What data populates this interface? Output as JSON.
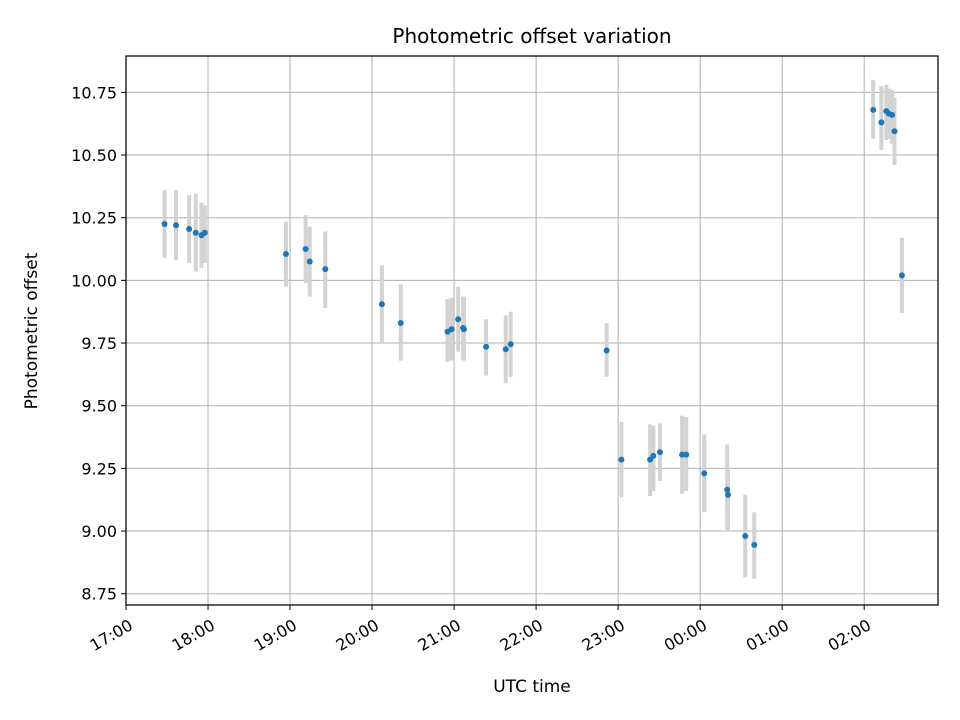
{
  "chart_data": {
    "type": "scatter",
    "title": "Photometric offset variation",
    "xlabel": "UTC time",
    "ylabel": "Photometric offset",
    "x_unit": "hours",
    "xlim": [
      17.0,
      26.9
    ],
    "ylim": [
      8.705,
      10.895
    ],
    "x_ticks": [
      {
        "value": 17,
        "label": "17:00"
      },
      {
        "value": 18,
        "label": "18:00"
      },
      {
        "value": 19,
        "label": "19:00"
      },
      {
        "value": 20,
        "label": "20:00"
      },
      {
        "value": 21,
        "label": "21:00"
      },
      {
        "value": 22,
        "label": "22:00"
      },
      {
        "value": 23,
        "label": "23:00"
      },
      {
        "value": 24,
        "label": "00:00"
      },
      {
        "value": 25,
        "label": "01:00"
      },
      {
        "value": 26,
        "label": "02:00"
      }
    ],
    "y_ticks": [
      8.75,
      9.0,
      9.25,
      9.5,
      9.75,
      10.0,
      10.25,
      10.5,
      10.75
    ],
    "y_tick_labels": [
      "8.75",
      "9.00",
      "9.25",
      "9.50",
      "9.75",
      "10.00",
      "10.25",
      "10.50",
      "10.75"
    ],
    "grid": true,
    "marker_color": "#1f77b4",
    "errorbar_color": "#d3d3d3",
    "points": [
      {
        "t": 17.47,
        "y": 10.225,
        "lo": 10.09,
        "hi": 10.36
      },
      {
        "t": 17.61,
        "y": 10.22,
        "lo": 10.08,
        "hi": 10.36
      },
      {
        "t": 17.77,
        "y": 10.205,
        "lo": 10.07,
        "hi": 10.34
      },
      {
        "t": 17.85,
        "y": 10.19,
        "lo": 10.035,
        "hi": 10.345
      },
      {
        "t": 17.92,
        "y": 10.18,
        "lo": 10.05,
        "hi": 10.31
      },
      {
        "t": 17.96,
        "y": 10.19,
        "lo": 10.07,
        "hi": 10.3
      },
      {
        "t": 18.95,
        "y": 10.105,
        "lo": 9.975,
        "hi": 10.235
      },
      {
        "t": 19.19,
        "y": 10.125,
        "lo": 9.99,
        "hi": 10.26
      },
      {
        "t": 19.24,
        "y": 10.075,
        "lo": 9.935,
        "hi": 10.215
      },
      {
        "t": 19.43,
        "y": 10.045,
        "lo": 9.89,
        "hi": 10.195
      },
      {
        "t": 20.12,
        "y": 9.905,
        "lo": 9.75,
        "hi": 10.06
      },
      {
        "t": 20.35,
        "y": 9.83,
        "lo": 9.68,
        "hi": 9.985
      },
      {
        "t": 20.92,
        "y": 9.795,
        "lo": 9.675,
        "hi": 9.925
      },
      {
        "t": 20.97,
        "y": 9.805,
        "lo": 9.68,
        "hi": 9.93
      },
      {
        "t": 21.05,
        "y": 9.845,
        "lo": 9.715,
        "hi": 9.975
      },
      {
        "t": 21.11,
        "y": 9.81,
        "lo": 9.685,
        "hi": 9.935
      },
      {
        "t": 21.12,
        "y": 9.805,
        "lo": 9.68,
        "hi": 9.935
      },
      {
        "t": 21.39,
        "y": 9.735,
        "lo": 9.62,
        "hi": 9.845
      },
      {
        "t": 21.63,
        "y": 9.725,
        "lo": 9.59,
        "hi": 9.86
      },
      {
        "t": 21.69,
        "y": 9.745,
        "lo": 9.615,
        "hi": 9.875
      },
      {
        "t": 22.86,
        "y": 9.72,
        "lo": 9.615,
        "hi": 9.83
      },
      {
        "t": 23.04,
        "y": 9.285,
        "lo": 9.135,
        "hi": 9.435
      },
      {
        "t": 23.39,
        "y": 9.285,
        "lo": 9.14,
        "hi": 9.425
      },
      {
        "t": 23.43,
        "y": 9.3,
        "lo": 9.16,
        "hi": 9.42
      },
      {
        "t": 23.51,
        "y": 9.315,
        "lo": 9.2,
        "hi": 9.43
      },
      {
        "t": 23.78,
        "y": 9.305,
        "lo": 9.15,
        "hi": 9.46
      },
      {
        "t": 23.83,
        "y": 9.305,
        "lo": 9.16,
        "hi": 9.455
      },
      {
        "t": 24.05,
        "y": 9.23,
        "lo": 9.075,
        "hi": 9.385
      },
      {
        "t": 24.33,
        "y": 9.165,
        "lo": 9.0,
        "hi": 9.345
      },
      {
        "t": 24.34,
        "y": 9.145,
        "lo": 9.0,
        "hi": 9.25
      },
      {
        "t": 24.55,
        "y": 8.98,
        "lo": 8.815,
        "hi": 9.145
      },
      {
        "t": 24.66,
        "y": 8.945,
        "lo": 8.81,
        "hi": 9.075
      },
      {
        "t": 26.11,
        "y": 10.68,
        "lo": 10.565,
        "hi": 10.8
      },
      {
        "t": 26.21,
        "y": 10.63,
        "lo": 10.52,
        "hi": 10.775
      },
      {
        "t": 26.27,
        "y": 10.675,
        "lo": 10.56,
        "hi": 10.78
      },
      {
        "t": 26.3,
        "y": 10.665,
        "lo": 10.565,
        "hi": 10.765
      },
      {
        "t": 26.34,
        "y": 10.66,
        "lo": 10.545,
        "hi": 10.76
      },
      {
        "t": 26.37,
        "y": 10.595,
        "lo": 10.46,
        "hi": 10.73
      },
      {
        "t": 26.46,
        "y": 10.02,
        "lo": 9.87,
        "hi": 10.17
      }
    ]
  }
}
